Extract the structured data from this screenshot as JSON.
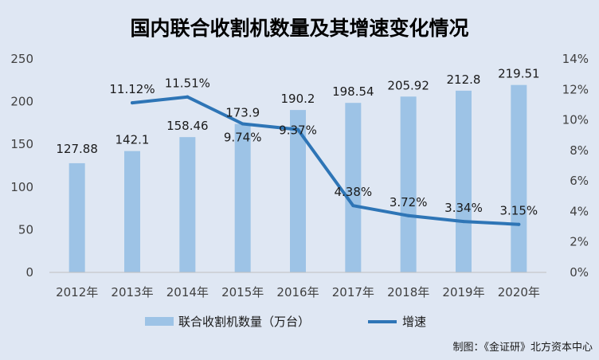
{
  "chart_data": {
    "type": "bar",
    "title": "国内联合收割机数量及其增速变化情况",
    "categories": [
      "2012年",
      "2013年",
      "2014年",
      "2015年",
      "2016年",
      "2017年",
      "2018年",
      "2019年",
      "2020年"
    ],
    "series": [
      {
        "name": "联合收割机数量（万台）",
        "type": "bar",
        "axis": "left",
        "color": "#9dc3e6",
        "values": [
          127.88,
          142.1,
          158.46,
          173.9,
          190.2,
          198.54,
          205.92,
          212.8,
          219.51
        ],
        "labels": [
          "127.88",
          "142.1",
          "158.46",
          "173.9",
          "190.2",
          "198.54",
          "205.92",
          "212.8",
          "219.51"
        ]
      },
      {
        "name": "增速",
        "type": "line",
        "axis": "right",
        "color": "#2e75b6",
        "values": [
          null,
          11.12,
          11.51,
          9.74,
          9.37,
          4.38,
          3.72,
          3.34,
          3.15
        ],
        "labels": [
          "",
          "11.12%",
          "11.51%",
          "9.74%",
          "9.37%",
          "4.38%",
          "3.72%",
          "3.34%",
          "3.15%"
        ]
      }
    ],
    "y_left": {
      "min": 0,
      "max": 250,
      "ticks": [
        "0",
        "50",
        "100",
        "150",
        "200",
        "250"
      ]
    },
    "y_right": {
      "min": 0,
      "max": 14,
      "ticks": [
        "0%",
        "2%",
        "4%",
        "6%",
        "8%",
        "10%",
        "12%",
        "14%"
      ]
    },
    "grid": false,
    "legend_position": "bottom",
    "source": "制图：《金证研》北方资本中心"
  }
}
